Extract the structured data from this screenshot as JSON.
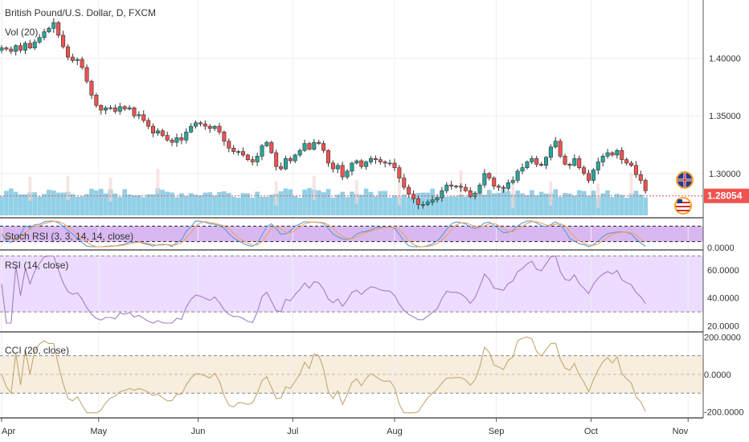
{
  "header": {
    "symbol_title": "British Pound/U.S. Dollar, D, FXCM",
    "volume_label": "Vol (20)"
  },
  "colors": {
    "up": "#26a69a",
    "down": "#ef5350",
    "volume": "#7ec8e3",
    "stoch_fill": "#d9b8f2",
    "rsi_fill": "#ecdcff",
    "cci_fill": "#f7eede",
    "osc_line": "#a57cc2",
    "cci_line": "#c4a774",
    "last_price_bg": "#ef5350"
  },
  "chart_data": [
    {
      "type": "candlestick",
      "name": "main",
      "title": "British Pound/U.S. Dollar, D, FXCM",
      "x_ticks": [
        "Apr",
        "May",
        "Jun",
        "Jul",
        "Aug",
        "Sep",
        "Oct",
        "Nov"
      ],
      "x_range": [
        0,
        147
      ],
      "x_tick_positions": [
        0,
        20.5,
        41.5,
        61.5,
        83,
        104.5,
        124.5,
        145
      ],
      "y_ticks": [
        "1.40000",
        "1.35000",
        "1.30000"
      ],
      "y_tick_values": [
        1.4,
        1.35,
        1.3
      ],
      "ylim": [
        1.265,
        1.445
      ],
      "last_price": "1.28054",
      "last_price_value": 1.28054,
      "close": [
        1.409,
        1.408,
        1.406,
        1.411,
        1.407,
        1.413,
        1.409,
        1.414,
        1.418,
        1.423,
        1.426,
        1.431,
        1.42,
        1.41,
        1.401,
        1.398,
        1.399,
        1.392,
        1.38,
        1.368,
        1.359,
        1.355,
        1.357,
        1.357,
        1.354,
        1.358,
        1.356,
        1.357,
        1.35,
        1.351,
        1.346,
        1.341,
        1.335,
        1.337,
        1.333,
        1.329,
        1.327,
        1.331,
        1.329,
        1.336,
        1.341,
        1.344,
        1.343,
        1.341,
        1.339,
        1.341,
        1.336,
        1.328,
        1.322,
        1.319,
        1.319,
        1.316,
        1.312,
        1.31,
        1.315,
        1.324,
        1.327,
        1.318,
        1.306,
        1.304,
        1.313,
        1.311,
        1.316,
        1.32,
        1.326,
        1.321,
        1.327,
        1.326,
        1.32,
        1.309,
        1.304,
        1.307,
        1.297,
        1.302,
        1.309,
        1.311,
        1.306,
        1.31,
        1.313,
        1.312,
        1.31,
        1.309,
        1.309,
        1.305,
        1.296,
        1.288,
        1.282,
        1.278,
        1.273,
        1.273,
        1.275,
        1.277,
        1.279,
        1.285,
        1.29,
        1.289,
        1.289,
        1.288,
        1.285,
        1.28,
        1.283,
        1.29,
        1.3,
        1.296,
        1.289,
        1.288,
        1.287,
        1.292,
        1.294,
        1.302,
        1.305,
        1.31,
        1.313,
        1.308,
        1.307,
        1.314,
        1.323,
        1.328,
        1.315,
        1.308,
        1.307,
        1.313,
        1.305,
        1.3,
        1.294,
        1.303,
        1.31,
        1.315,
        1.318,
        1.316,
        1.32,
        1.312,
        1.309,
        1.307,
        1.299,
        1.294,
        1.285
      ]
    },
    {
      "type": "bar",
      "name": "volume",
      "title": "Vol (20)"
    },
    {
      "type": "line",
      "name": "stoch_rsi",
      "title": "Stoch RSI (3, 3, 14, 14, close)",
      "y_ticks": [
        "0.0000"
      ],
      "ylim": [
        0,
        100
      ],
      "band_upper": 80,
      "band_lower": 20
    },
    {
      "type": "line",
      "name": "rsi",
      "title": "RSI (14, close)",
      "y_ticks": [
        "60.0000",
        "40.0000",
        "20.0000"
      ],
      "y_tick_values": [
        60,
        40,
        20
      ],
      "ylim": [
        18,
        72
      ],
      "band_upper": 70,
      "band_lower": 30
    },
    {
      "type": "line",
      "name": "cci",
      "title": "CCI (20, close)",
      "y_ticks": [
        "200.0000",
        "0.0000",
        "-200.0000"
      ],
      "y_tick_values": [
        200,
        0,
        -200
      ],
      "ylim": [
        -215,
        210
      ],
      "band_upper": 100,
      "band_lower": -100
    }
  ]
}
